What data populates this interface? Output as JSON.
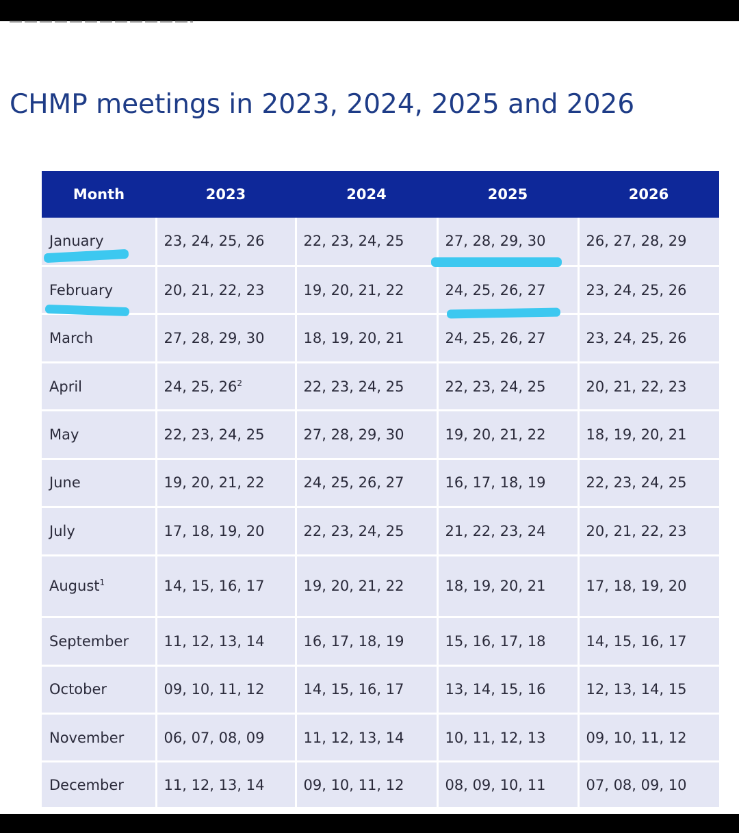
{
  "page": {
    "title": "CHMP meetings in 2023, 2024, 2025 and 2026",
    "header_color": "#0e2899",
    "title_color": "#1e3c87",
    "highlight_color": "#3cc8f0"
  },
  "table": {
    "headers": [
      "Month",
      "2023",
      "2024",
      "2025",
      "2026"
    ],
    "rows": [
      {
        "month": "January",
        "note": "",
        "v2023": "23, 24, 25, 26",
        "v2023_note": "",
        "v2024": "22, 23, 24, 25",
        "v2025": "27, 28, 29, 30",
        "v2026": "26, 27, 28, 29"
      },
      {
        "month": "February",
        "note": "",
        "v2023": "20, 21, 22, 23",
        "v2023_note": "",
        "v2024": "19, 20, 21, 22",
        "v2025": "24, 25, 26, 27",
        "v2026": "23, 24, 25, 26"
      },
      {
        "month": "March",
        "note": "",
        "v2023": "27, 28, 29, 30",
        "v2023_note": "",
        "v2024": "18, 19, 20, 21",
        "v2025": "24, 25, 26, 27",
        "v2026": "23, 24, 25, 26"
      },
      {
        "month": "April",
        "note": "",
        "v2023": "24, 25, 26",
        "v2023_note": "2",
        "v2024": "22, 23, 24, 25",
        "v2025": "22, 23, 24, 25",
        "v2026": "20, 21, 22, 23"
      },
      {
        "month": "May",
        "note": "",
        "v2023": "22, 23, 24, 25",
        "v2023_note": "",
        "v2024": "27, 28, 29, 30",
        "v2025": "19, 20, 21, 22",
        "v2026": "18, 19, 20, 21"
      },
      {
        "month": "June",
        "note": "",
        "v2023": "19, 20, 21, 22",
        "v2023_note": "",
        "v2024": "24, 25, 26, 27",
        "v2025": "16, 17, 18, 19",
        "v2026": "22, 23, 24, 25"
      },
      {
        "month": "July",
        "note": "",
        "v2023": "17, 18, 19, 20",
        "v2023_note": "",
        "v2024": "22, 23, 24, 25",
        "v2025": "21, 22, 23, 24",
        "v2026": "20, 21, 22, 23"
      },
      {
        "month": "August",
        "note": "1",
        "v2023": "14, 15, 16, 17",
        "v2023_note": "",
        "v2024": "19, 20, 21, 22",
        "v2025": "18, 19, 20, 21",
        "v2026": "17, 18, 19, 20"
      },
      {
        "month": "September",
        "note": "",
        "v2023": "11, 12, 13, 14",
        "v2023_note": "",
        "v2024": "16, 17, 18, 19",
        "v2025": "15, 16, 17, 18",
        "v2026": "14, 15, 16, 17"
      },
      {
        "month": "October",
        "note": "",
        "v2023": "09, 10, 11, 12",
        "v2023_note": "",
        "v2024": "14, 15, 16, 17",
        "v2025": "13, 14, 15, 16",
        "v2026": "12, 13, 14, 15"
      },
      {
        "month": "November",
        "note": "",
        "v2023": "06, 07, 08, 09",
        "v2023_note": "",
        "v2024": "11, 12, 13, 14",
        "v2025": "10, 11, 12, 13",
        "v2026": "09, 10, 11, 12"
      },
      {
        "month": "December",
        "note": "",
        "v2023": "11, 12, 13, 14",
        "v2023_note": "",
        "v2024": "09, 10, 11, 12",
        "v2025": "08, 09, 10, 11",
        "v2026": "07, 08, 09, 10"
      }
    ]
  }
}
